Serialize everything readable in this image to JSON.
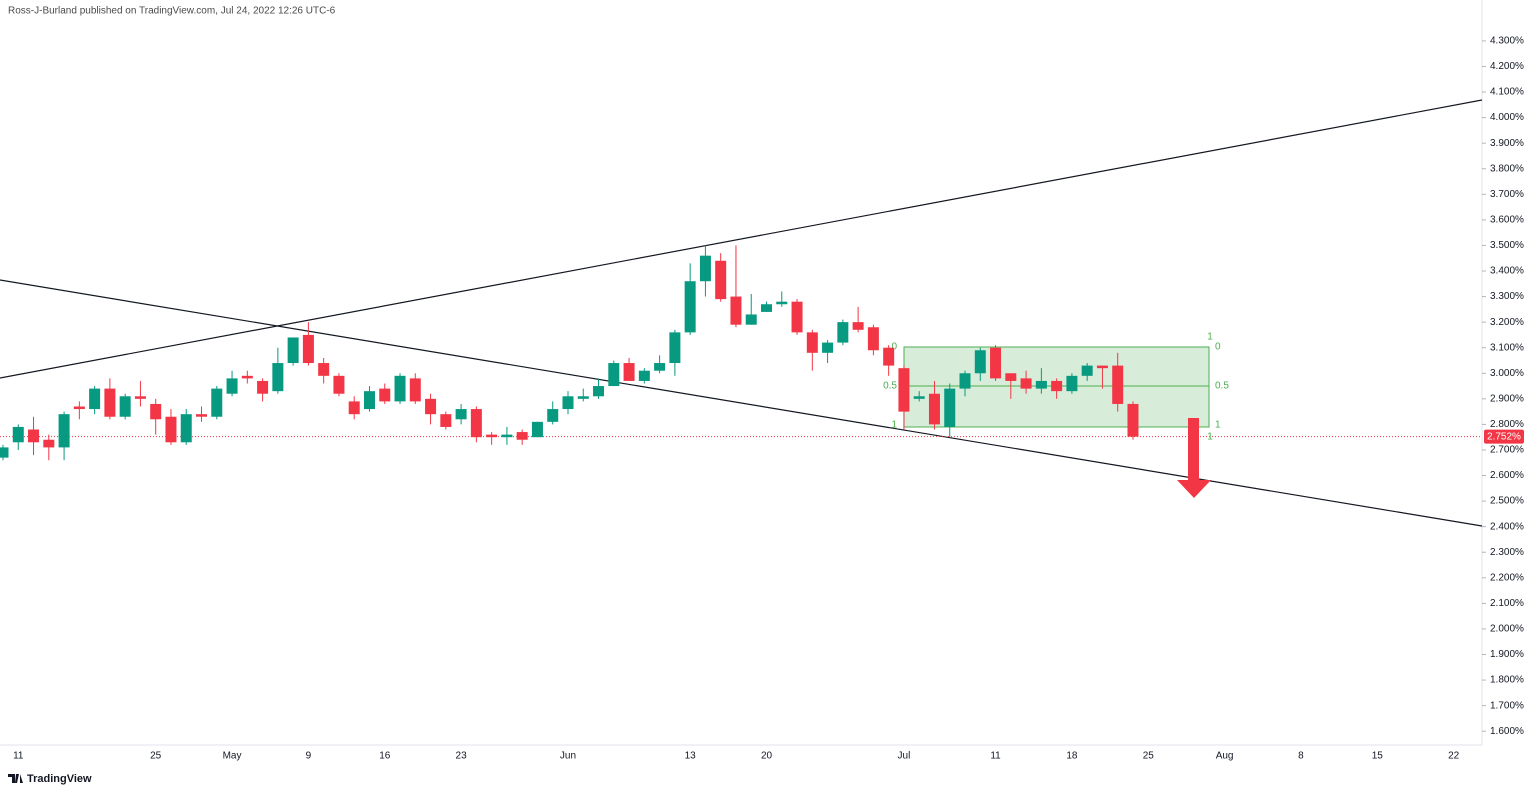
{
  "chart_data": {
    "type": "candlestick",
    "header": "Ross-J-Burland published on TradingView.com, Jul 24, 2022 12:26 UTC-6",
    "branding": "TradingView",
    "up_color": "#089981",
    "down_color": "#f23645",
    "categories": [
      null,
      "11",
      null,
      null,
      null,
      null,
      null,
      null,
      null,
      null,
      "25",
      null,
      null,
      null,
      null,
      "May",
      null,
      null,
      null,
      null,
      "9",
      null,
      null,
      null,
      null,
      "16",
      null,
      null,
      null,
      null,
      "23",
      null,
      null,
      null,
      null,
      null,
      null,
      "Jun",
      null,
      null,
      null,
      null,
      null,
      null,
      null,
      "13",
      null,
      null,
      null,
      null,
      "20",
      null,
      null,
      null,
      null,
      null,
      null,
      null,
      null,
      "Jul",
      null,
      null,
      null,
      null,
      null,
      "11",
      null,
      null,
      null,
      null,
      "18",
      null,
      null,
      null,
      null,
      "25",
      null,
      null,
      null,
      null,
      "Aug",
      null,
      null,
      null,
      null,
      "8",
      null,
      null,
      null,
      null,
      "15",
      null,
      null,
      null,
      null,
      "22",
      null
    ],
    "open": [
      2.67,
      2.73,
      2.78,
      2.74,
      2.71,
      2.87,
      2.86,
      2.94,
      2.83,
      2.91,
      2.88,
      2.83,
      2.73,
      2.84,
      2.83,
      2.92,
      2.99,
      2.97,
      2.93,
      3.04,
      3.15,
      3.04,
      2.99,
      2.89,
      2.86,
      2.94,
      2.89,
      2.98,
      2.9,
      2.84,
      2.82,
      2.86,
      2.76,
      2.75,
      2.77,
      2.75,
      2.81,
      2.86,
      2.9,
      2.91,
      2.95,
      3.04,
      2.97,
      3.01,
      3.04,
      3.16,
      3.36,
      3.44,
      3.3,
      3.19,
      3.24,
      3.27,
      3.28,
      3.16,
      3.08,
      3.12,
      3.2,
      3.18,
      3.1,
      3.02,
      2.9,
      2.92,
      2.79,
      2.94,
      3.0,
      3.1,
      3.0,
      2.98,
      2.94,
      2.97,
      2.93,
      2.99,
      3.03,
      3.03,
      2.88,
      null,
      null,
      null,
      null,
      null,
      null,
      null,
      null,
      null,
      null,
      null,
      null,
      null,
      null,
      null,
      null,
      null,
      null,
      null,
      null,
      null,
      null
    ],
    "high": [
      2.72,
      2.8,
      2.83,
      2.76,
      2.85,
      2.89,
      2.95,
      2.98,
      2.92,
      2.97,
      2.9,
      2.86,
      2.86,
      2.87,
      2.95,
      3.01,
      3.01,
      2.98,
      3.1,
      3.14,
      3.2,
      3.06,
      3.0,
      2.91,
      2.95,
      2.96,
      3.0,
      3.0,
      2.92,
      2.85,
      2.88,
      2.87,
      2.77,
      2.79,
      2.78,
      2.81,
      2.89,
      2.93,
      2.94,
      2.98,
      3.05,
      3.06,
      3.02,
      3.07,
      3.17,
      3.43,
      3.5,
      3.47,
      3.5,
      3.31,
      3.28,
      3.32,
      3.29,
      3.17,
      3.13,
      3.21,
      3.26,
      3.19,
      3.11,
      3.03,
      2.93,
      2.97,
      2.96,
      3.01,
      3.1,
      3.11,
      3.0,
      3.01,
      3.02,
      2.98,
      3.0,
      3.04,
      3.03,
      3.08,
      2.89,
      null,
      null,
      null,
      null,
      null,
      null,
      null,
      null,
      null,
      null,
      null,
      null,
      null,
      null,
      null,
      null,
      null,
      null,
      null,
      null,
      null,
      null
    ],
    "low": [
      2.66,
      2.7,
      2.68,
      2.66,
      2.66,
      2.82,
      2.84,
      2.82,
      2.82,
      2.87,
      2.76,
      2.72,
      2.72,
      2.81,
      2.82,
      2.91,
      2.96,
      2.89,
      2.92,
      3.03,
      3.03,
      2.96,
      2.91,
      2.82,
      2.85,
      2.88,
      2.88,
      2.88,
      2.8,
      2.78,
      2.8,
      2.73,
      2.72,
      2.72,
      2.72,
      2.75,
      2.8,
      2.84,
      2.89,
      2.9,
      2.95,
      2.97,
      2.96,
      3.0,
      2.99,
      3.15,
      3.3,
      3.28,
      3.18,
      3.19,
      3.24,
      3.26,
      3.15,
      3.01,
      3.04,
      3.11,
      3.16,
      3.07,
      2.99,
      2.78,
      2.89,
      2.78,
      2.75,
      2.91,
      2.97,
      2.97,
      2.9,
      2.92,
      2.92,
      2.9,
      2.92,
      2.97,
      2.94,
      2.85,
      2.74,
      null,
      null,
      null,
      null,
      null,
      null,
      null,
      null,
      null,
      null,
      null,
      null,
      null,
      null,
      null,
      null,
      null,
      null,
      null,
      null,
      null,
      null
    ],
    "close": [
      2.71,
      2.79,
      2.73,
      2.71,
      2.84,
      2.86,
      2.94,
      2.83,
      2.91,
      2.9,
      2.82,
      2.73,
      2.84,
      2.83,
      2.94,
      2.98,
      2.98,
      2.92,
      3.04,
      3.14,
      3.04,
      2.99,
      2.92,
      2.84,
      2.93,
      2.89,
      2.99,
      2.89,
      2.84,
      2.79,
      2.86,
      2.75,
      2.75,
      2.76,
      2.74,
      2.81,
      2.86,
      2.91,
      2.91,
      2.95,
      3.04,
      2.97,
      3.01,
      3.04,
      3.16,
      3.36,
      3.46,
      3.29,
      3.19,
      3.23,
      3.27,
      3.28,
      3.16,
      3.08,
      3.12,
      3.2,
      3.17,
      3.09,
      3.03,
      2.85,
      2.91,
      2.8,
      2.94,
      3.0,
      3.09,
      2.98,
      2.97,
      2.94,
      2.97,
      2.93,
      2.99,
      3.03,
      3.02,
      2.88,
      2.752,
      null,
      null,
      null,
      null,
      null,
      null,
      null,
      null,
      null,
      null,
      null,
      null,
      null,
      null,
      null,
      null,
      null,
      null,
      null,
      null,
      null,
      null
    ],
    "last_price": {
      "value": 2.752,
      "label": "2.752%"
    },
    "fib_labels": [
      "1",
      "0",
      "0.5",
      "1",
      "0",
      "0.5",
      "1",
      "1"
    ],
    "ylim": [
      1.546,
      4.46
    ],
    "yticks": [
      {
        "value": 1.6,
        "label": "1.600%"
      },
      {
        "value": 1.7,
        "label": "1.700%"
      },
      {
        "value": 1.8,
        "label": "1.800%"
      },
      {
        "value": 1.9,
        "label": "1.900%"
      },
      {
        "value": 2.0,
        "label": "2.000%"
      },
      {
        "value": 2.1,
        "label": "2.100%"
      },
      {
        "value": 2.2,
        "label": "2.200%"
      },
      {
        "value": 2.3,
        "label": "2.300%"
      },
      {
        "value": 2.4,
        "label": "2.400%"
      },
      {
        "value": 2.5,
        "label": "2.500%"
      },
      {
        "value": 2.6,
        "label": "2.600%"
      },
      {
        "value": 2.7,
        "label": "2.700%"
      },
      {
        "value": 2.8,
        "label": "2.800%"
      },
      {
        "value": 2.9,
        "label": "2.900%"
      },
      {
        "value": 3.0,
        "label": "3.000%"
      },
      {
        "value": 3.1,
        "label": "3.100%"
      },
      {
        "value": 3.2,
        "label": "3.200%"
      },
      {
        "value": 3.3,
        "label": "3.300%"
      },
      {
        "value": 3.4,
        "label": "3.400%"
      },
      {
        "value": 3.5,
        "label": "3.500%"
      },
      {
        "value": 3.6,
        "label": "3.600%"
      },
      {
        "value": 3.7,
        "label": "3.700%"
      },
      {
        "value": 3.8,
        "label": "3.800%"
      },
      {
        "value": 3.9,
        "label": "3.900%"
      },
      {
        "value": 4.0,
        "label": "4.000%"
      },
      {
        "value": 4.1,
        "label": "4.100%"
      },
      {
        "value": 4.2,
        "label": "4.200%"
      },
      {
        "value": 4.3,
        "label": "4.300%"
      }
    ]
  }
}
